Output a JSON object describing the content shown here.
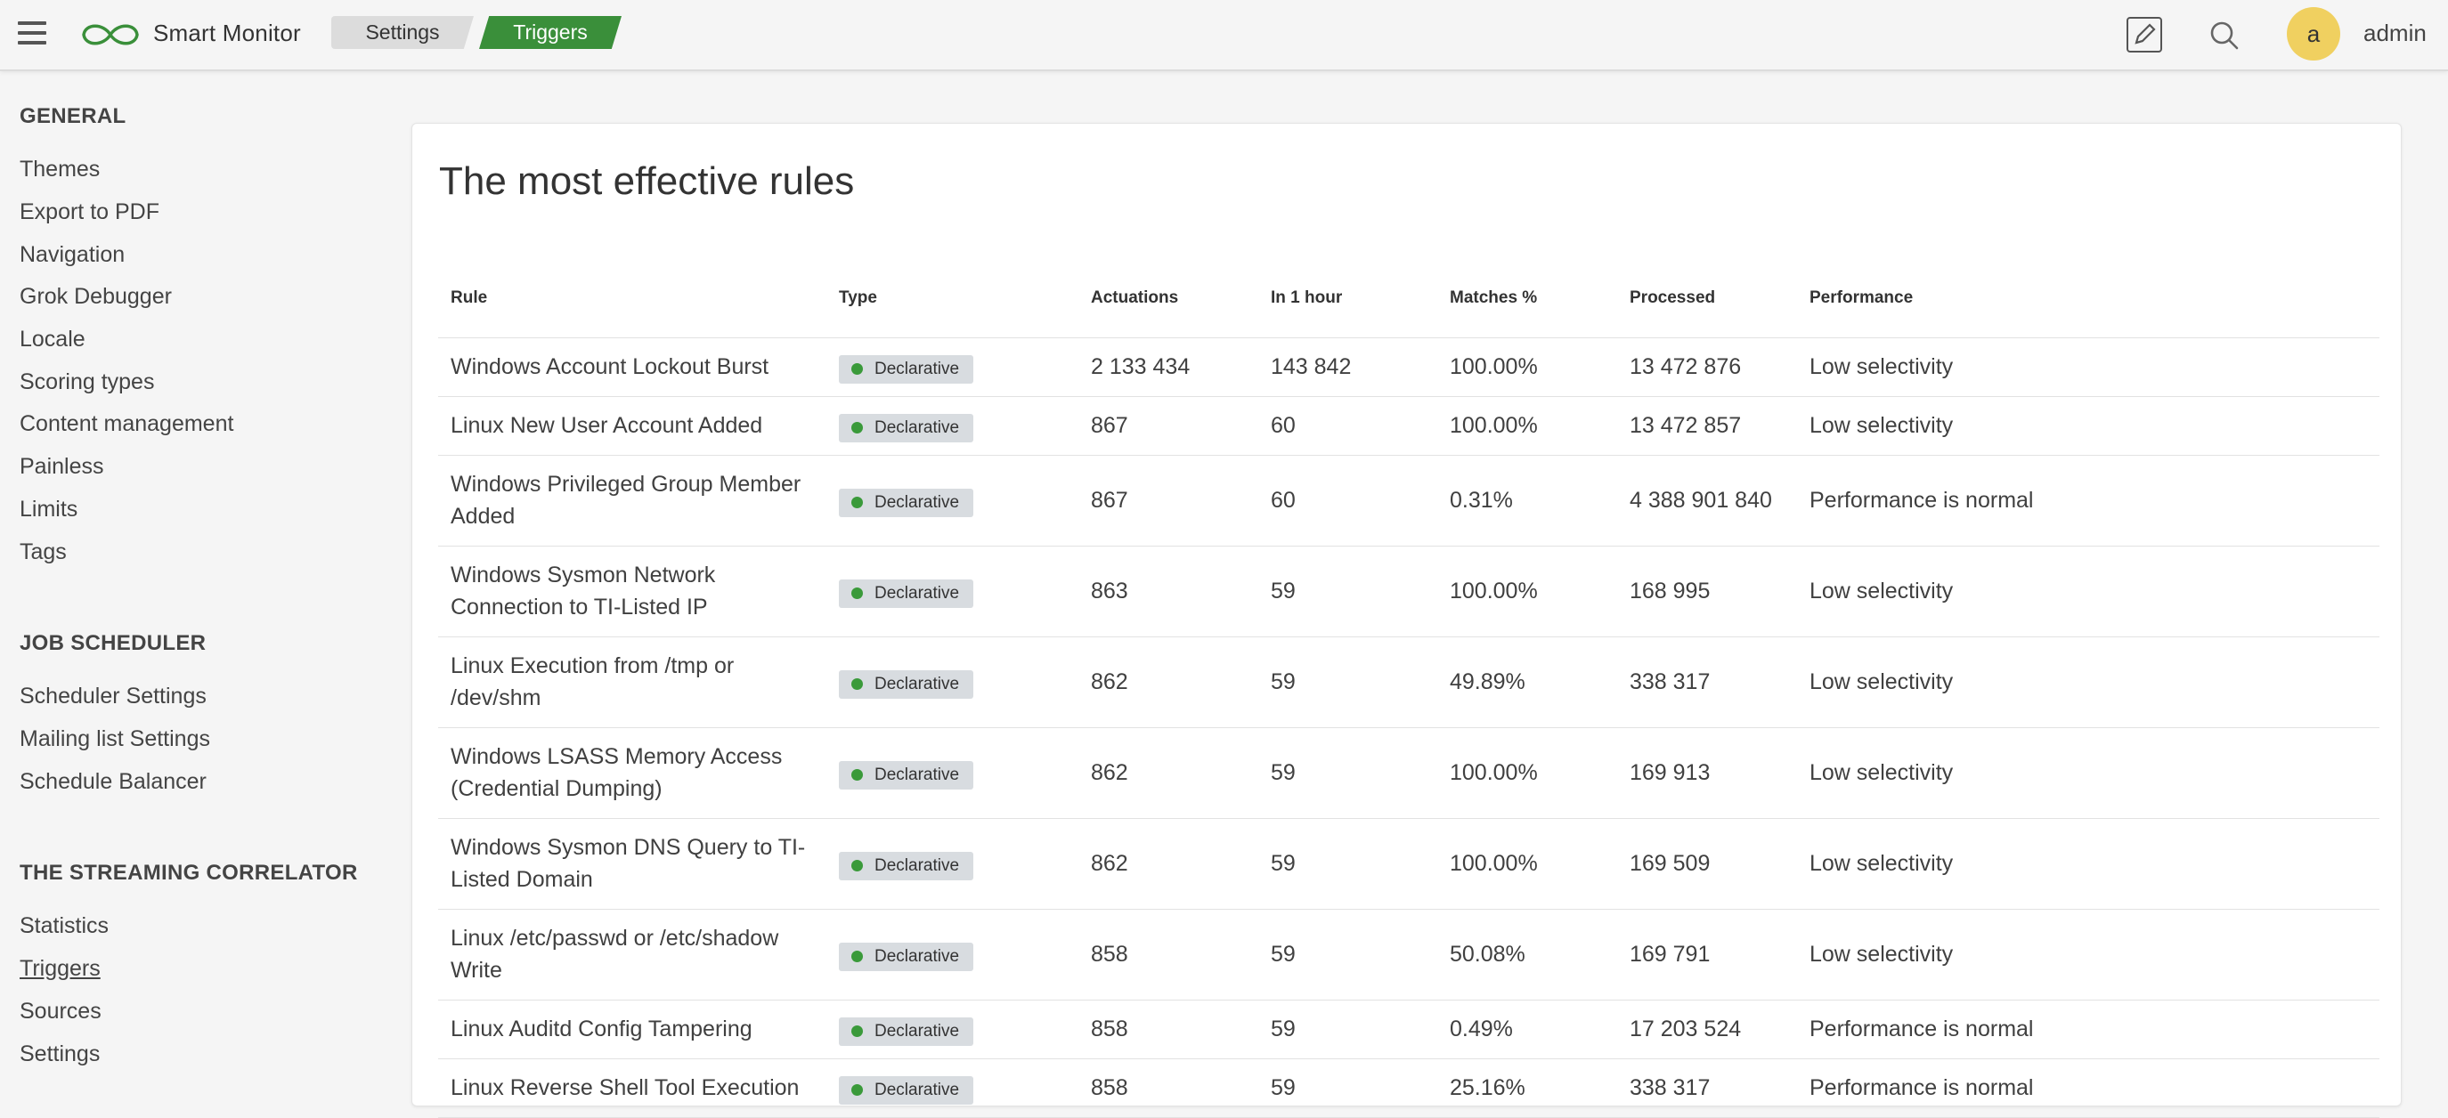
{
  "header": {
    "app_name": "Smart Monitor",
    "breadcrumbs": [
      "Settings",
      "Triggers"
    ],
    "user_initial": "a",
    "username": "admin",
    "colors": {
      "active_crumb": "#3a8f3a",
      "avatar": "#f0d060",
      "status_dot": "#3a9a3a"
    }
  },
  "sidebar": {
    "sections": [
      {
        "title": "GENERAL",
        "items": [
          "Themes",
          "Export to PDF",
          "Navigation",
          "Grok Debugger",
          "Locale",
          "Scoring types",
          "Content management",
          "Painless",
          "Limits",
          "Tags"
        ]
      },
      {
        "title": "JOB SCHEDULER",
        "items": [
          "Scheduler Settings",
          "Mailing list Settings",
          "Schedule Balancer"
        ]
      },
      {
        "title": "THE STREAMING CORRELATOR",
        "items": [
          "Statistics",
          "Triggers",
          "Sources",
          "Settings"
        ]
      }
    ],
    "active_item": "Triggers"
  },
  "main": {
    "title": "The most effective rules",
    "columns": [
      "Rule",
      "Type",
      "Actuations",
      "In 1 hour",
      "Matches %",
      "Processed",
      "Performance"
    ],
    "rows": [
      [
        "Windows Account Lockout Burst",
        "Declarative",
        "2 133 434",
        "143 842",
        "100.00%",
        "13 472 876",
        "Low selectivity"
      ],
      [
        "Linux New User Account Added",
        "Declarative",
        "867",
        "60",
        "100.00%",
        "13 472 857",
        "Low selectivity"
      ],
      [
        "Windows Privileged Group Member Added",
        "Declarative",
        "867",
        "60",
        "0.31%",
        "4 388 901 840",
        "Performance is normal"
      ],
      [
        "Windows Sysmon Network Connection to TI-Listed IP",
        "Declarative",
        "863",
        "59",
        "100.00%",
        "168 995",
        "Low selectivity"
      ],
      [
        "Linux Execution from /tmp or /dev/shm",
        "Declarative",
        "862",
        "59",
        "49.89%",
        "338 317",
        "Low selectivity"
      ],
      [
        "Windows LSASS Memory Access (Credential Dumping)",
        "Declarative",
        "862",
        "59",
        "100.00%",
        "169 913",
        "Low selectivity"
      ],
      [
        "Windows Sysmon DNS Query to TI-Listed Domain",
        "Declarative",
        "862",
        "59",
        "100.00%",
        "169 509",
        "Low selectivity"
      ],
      [
        "Linux /etc/passwd or /etc/shadow Write",
        "Declarative",
        "858",
        "59",
        "50.08%",
        "169 791",
        "Low selectivity"
      ],
      [
        "Linux Auditd Config Tampering",
        "Declarative",
        "858",
        "59",
        "0.49%",
        "17 203 524",
        "Performance is normal"
      ],
      [
        "Linux Reverse Shell Tool Execution",
        "Declarative",
        "858",
        "59",
        "25.16%",
        "338 317",
        "Performance is normal"
      ]
    ]
  }
}
